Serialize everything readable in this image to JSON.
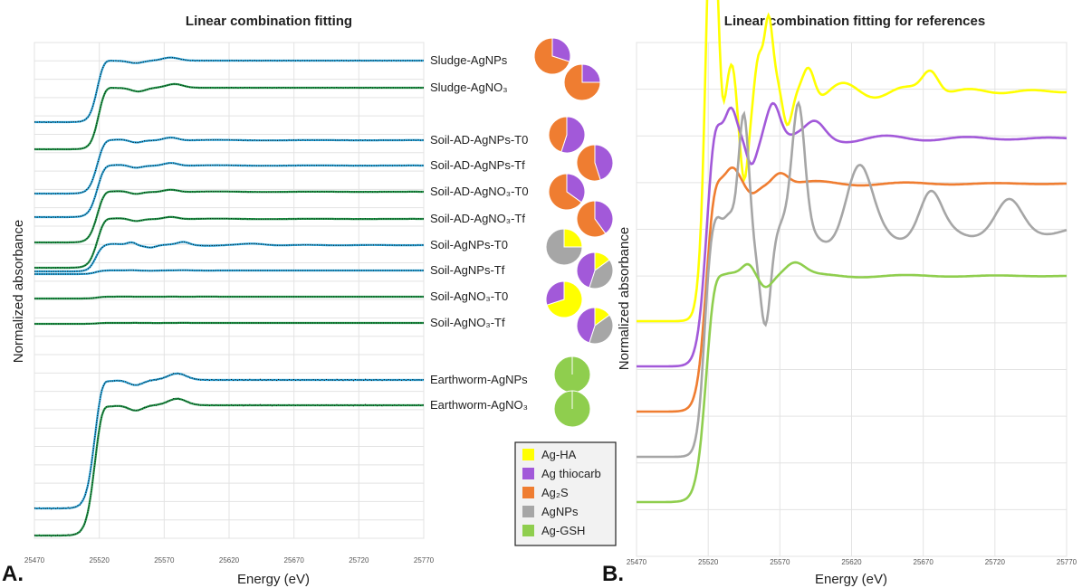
{
  "panel_labels": [
    "A.",
    "B."
  ],
  "legend": {
    "items": [
      {
        "label": "Ag-HA",
        "color": "#ffff00"
      },
      {
        "label": "Ag thiocarb",
        "color": "#a259d9"
      },
      {
        "label": "Ag₂S",
        "color": "#ef7d31"
      },
      {
        "label": "AgNPs",
        "color": "#a6a6a6"
      },
      {
        "label": "Ag-GSH",
        "color": "#8fce4e"
      }
    ]
  },
  "chart_data": [
    {
      "type": "line",
      "title": "Linear combination fitting",
      "xlabel": "Energy (eV)",
      "ylabel": "Normalized absorbance",
      "xlim": [
        25470,
        25770
      ],
      "x_ticks": [
        "25470",
        "25520",
        "25570",
        "25620",
        "25670",
        "25720",
        "25770"
      ],
      "grid": true,
      "series": [
        {
          "name": "Sludge-AgNPs",
          "fit_color": "#29a8e0",
          "pie": [
            {
              "component": "Ag thiocarb",
              "value": 0.3
            },
            {
              "component": "Ag2S",
              "value": 0.7
            }
          ]
        },
        {
          "name": "Sludge-AgNO₃",
          "fit_color": "#1f9e4a",
          "pie": [
            {
              "component": "Ag thiocarb",
              "value": 0.25
            },
            {
              "component": "Ag2S",
              "value": 0.75
            }
          ]
        },
        {
          "name": "Soil-AD-AgNPs-T0",
          "fit_color": "#29a8e0",
          "pie": [
            {
              "component": "Ag thiocarb",
              "value": 0.55
            },
            {
              "component": "Ag2S",
              "value": 0.45
            }
          ]
        },
        {
          "name": "Soil-AD-AgNPs-Tf",
          "fit_color": "#29a8e0",
          "pie": [
            {
              "component": "Ag thiocarb",
              "value": 0.45
            },
            {
              "component": "Ag2S",
              "value": 0.55
            }
          ]
        },
        {
          "name": "Soil-AD-AgNO₃-T0",
          "fit_color": "#1f9e4a",
          "pie": [
            {
              "component": "Ag thiocarb",
              "value": 0.35
            },
            {
              "component": "Ag2S",
              "value": 0.65
            }
          ]
        },
        {
          "name": "Soil-AD-AgNO₃-Tf",
          "fit_color": "#1f9e4a",
          "pie": [
            {
              "component": "Ag thiocarb",
              "value": 0.4
            },
            {
              "component": "Ag2S",
              "value": 0.6
            }
          ]
        },
        {
          "name": "Soil-AgNPs-T0",
          "fit_color": "#29a8e0",
          "pie": [
            {
              "component": "Ag-HA",
              "value": 0.25
            },
            {
              "component": "AgNPs",
              "value": 0.75
            }
          ]
        },
        {
          "name": "Soil-AgNPs-Tf",
          "fit_color": "#29a8e0",
          "pie": [
            {
              "component": "Ag-HA",
              "value": 0.15
            },
            {
              "component": "AgNPs",
              "value": 0.4
            },
            {
              "component": "Ag thiocarb",
              "value": 0.45
            }
          ]
        },
        {
          "name": "Soil-AgNO₃-T0",
          "fit_color": "#1f9e4a",
          "pie": [
            {
              "component": "Ag-HA",
              "value": 0.7
            },
            {
              "component": "Ag thiocarb",
              "value": 0.3
            }
          ]
        },
        {
          "name": "Soil-AgNO₃-Tf",
          "fit_color": "#1f9e4a",
          "pie": [
            {
              "component": "Ag-HA",
              "value": 0.15
            },
            {
              "component": "AgNPs",
              "value": 0.4
            },
            {
              "component": "Ag thiocarb",
              "value": 0.45
            }
          ]
        },
        {
          "name": "Earthworm-AgNPs",
          "fit_color": "#29a8e0",
          "pie": [
            {
              "component": "Ag-GSH",
              "value": 1.0
            }
          ]
        },
        {
          "name": "Earthworm-AgNO₃",
          "fit_color": "#1f9e4a",
          "pie": [
            {
              "component": "Ag-GSH",
              "value": 1.0
            }
          ]
        }
      ]
    },
    {
      "type": "line",
      "title": "Linear combination fitting for references",
      "xlabel": "Energy (eV)",
      "ylabel": "Normalized absorbance",
      "xlim": [
        25470,
        25770
      ],
      "x_ticks": [
        "25470",
        "25520",
        "25570",
        "25620",
        "25670",
        "25720",
        "25770"
      ],
      "grid": true,
      "series": [
        {
          "name": "Ag-HA",
          "color": "#ffff00"
        },
        {
          "name": "Ag thiocarb",
          "color": "#a259d9"
        },
        {
          "name": "Ag₂S",
          "color": "#ef7d31"
        },
        {
          "name": "AgNPs",
          "color": "#a6a6a6"
        },
        {
          "name": "Ag-GSH",
          "color": "#8fce4e"
        }
      ]
    }
  ]
}
